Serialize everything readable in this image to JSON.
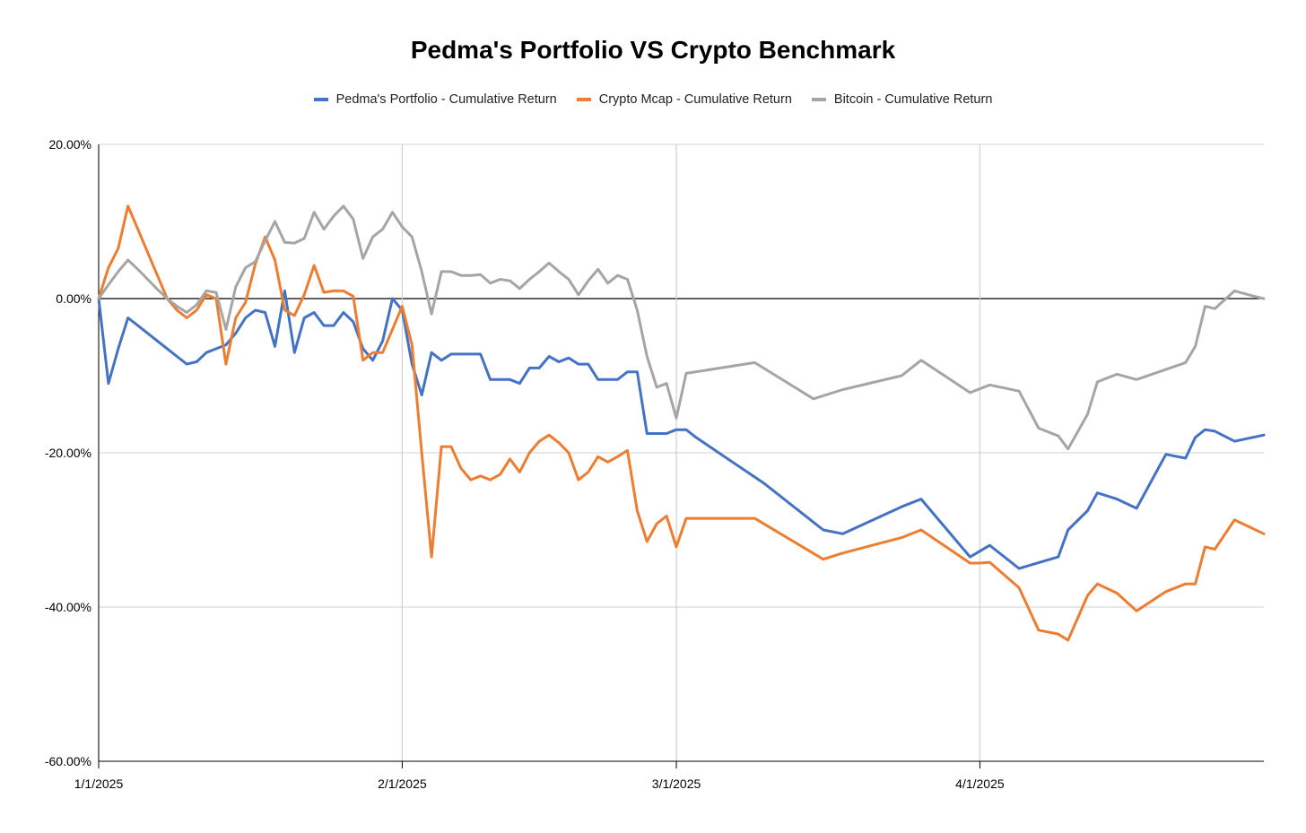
{
  "chart_data": {
    "type": "line",
    "title": "Pedma's Portfolio VS Crypto Benchmark",
    "xlabel": "",
    "ylabel": "",
    "ylim": [
      -60,
      20
    ],
    "xlim": [
      "2025-01-01",
      "2025-04-30"
    ],
    "y_ticks": [
      "20.00%",
      "0.00%",
      "-20.00%",
      "-40.00%",
      "-60.00%"
    ],
    "x_ticks": [
      {
        "date": "2025-01-01",
        "label": "1/1/2025"
      },
      {
        "date": "2025-02-01",
        "label": "2/1/2025"
      },
      {
        "date": "2025-03-01",
        "label": "3/1/2025"
      },
      {
        "date": "2025-04-01",
        "label": "4/1/2025"
      }
    ],
    "grid": true,
    "legend_position": "top",
    "series": [
      {
        "name": "Pedma's Portfolio - Cumulative Return",
        "color": "#4472C4",
        "points": [
          [
            "2025-01-01",
            0
          ],
          [
            "2025-01-02",
            -11
          ],
          [
            "2025-01-03",
            -6.5
          ],
          [
            "2025-01-04",
            -2.5
          ],
          [
            "2025-01-05",
            -3.5
          ],
          [
            "2025-01-06",
            -4.5
          ],
          [
            "2025-01-07",
            -5.5
          ],
          [
            "2025-01-08",
            -6.5
          ],
          [
            "2025-01-09",
            -7.5
          ],
          [
            "2025-01-10",
            -8.5
          ],
          [
            "2025-01-11",
            -8.2
          ],
          [
            "2025-01-12",
            -7
          ],
          [
            "2025-01-13",
            -6.5
          ],
          [
            "2025-01-14",
            -6
          ],
          [
            "2025-01-15",
            -4.5
          ],
          [
            "2025-01-16",
            -2.5
          ],
          [
            "2025-01-17",
            -1.5
          ],
          [
            "2025-01-18",
            -1.8
          ],
          [
            "2025-01-19",
            -6.2
          ],
          [
            "2025-01-20",
            1
          ],
          [
            "2025-01-21",
            -7
          ],
          [
            "2025-01-22",
            -2.5
          ],
          [
            "2025-01-23",
            -1.8
          ],
          [
            "2025-01-24",
            -3.5
          ],
          [
            "2025-01-25",
            -3.5
          ],
          [
            "2025-01-26",
            -1.8
          ],
          [
            "2025-01-27",
            -3
          ],
          [
            "2025-01-28",
            -6.5
          ],
          [
            "2025-01-29",
            -8
          ],
          [
            "2025-01-30",
            -5.5
          ],
          [
            "2025-01-31",
            0
          ],
          [
            "2025-02-01",
            -1.5
          ],
          [
            "2025-02-02",
            -8.5
          ],
          [
            "2025-02-03",
            -12.5
          ],
          [
            "2025-02-04",
            -7
          ],
          [
            "2025-02-05",
            -8
          ],
          [
            "2025-02-06",
            -7.2
          ],
          [
            "2025-02-07",
            -7.2
          ],
          [
            "2025-02-08",
            -7.2
          ],
          [
            "2025-02-09",
            -7.2
          ],
          [
            "2025-02-10",
            -10.5
          ],
          [
            "2025-02-11",
            -10.5
          ],
          [
            "2025-02-12",
            -10.5
          ],
          [
            "2025-02-13",
            -11
          ],
          [
            "2025-02-14",
            -9
          ],
          [
            "2025-02-15",
            -9
          ],
          [
            "2025-02-16",
            -7.5
          ],
          [
            "2025-02-17",
            -8.2
          ],
          [
            "2025-02-18",
            -7.7
          ],
          [
            "2025-02-19",
            -8.5
          ],
          [
            "2025-02-20",
            -8.5
          ],
          [
            "2025-02-21",
            -10.5
          ],
          [
            "2025-02-22",
            -10.5
          ],
          [
            "2025-02-23",
            -10.5
          ],
          [
            "2025-02-24",
            -9.5
          ],
          [
            "2025-02-25",
            -9.5
          ],
          [
            "2025-02-26",
            -17.5
          ],
          [
            "2025-02-27",
            -17.5
          ],
          [
            "2025-02-28",
            -17.5
          ],
          [
            "2025-03-01",
            -17
          ],
          [
            "2025-03-02",
            -17
          ],
          [
            "2025-03-03",
            -18
          ],
          [
            "2025-03-10",
            -24
          ],
          [
            "2025-03-16",
            -30
          ],
          [
            "2025-03-18",
            -30.5
          ],
          [
            "2025-03-24",
            -27
          ],
          [
            "2025-03-26",
            -26
          ],
          [
            "2025-03-31",
            -33.5
          ],
          [
            "2025-04-02",
            -32
          ],
          [
            "2025-04-05",
            -35
          ],
          [
            "2025-04-09",
            -33.5
          ],
          [
            "2025-04-10",
            -30
          ],
          [
            "2025-04-12",
            -27.5
          ],
          [
            "2025-04-13",
            -25.2
          ],
          [
            "2025-04-15",
            -26
          ],
          [
            "2025-04-17",
            -27.2
          ],
          [
            "2025-04-20",
            -20.2
          ],
          [
            "2025-04-22",
            -20.7
          ],
          [
            "2025-04-23",
            -18
          ],
          [
            "2025-04-24",
            -17
          ],
          [
            "2025-04-25",
            -17.2
          ],
          [
            "2025-04-27",
            -18.5
          ],
          [
            "2025-04-30",
            -17.7
          ]
        ]
      },
      {
        "name": "Crypto Mcap - Cumulative Return",
        "color": "#ED7D31",
        "points": [
          [
            "2025-01-01",
            0
          ],
          [
            "2025-01-02",
            4
          ],
          [
            "2025-01-03",
            6.5
          ],
          [
            "2025-01-04",
            12
          ],
          [
            "2025-01-05",
            9
          ],
          [
            "2025-01-06",
            6
          ],
          [
            "2025-01-07",
            3
          ],
          [
            "2025-01-08",
            0
          ],
          [
            "2025-01-09",
            -1.5
          ],
          [
            "2025-01-10",
            -2.5
          ],
          [
            "2025-01-11",
            -1.5
          ],
          [
            "2025-01-12",
            0.5
          ],
          [
            "2025-01-13",
            0
          ],
          [
            "2025-01-14",
            -8.5
          ],
          [
            "2025-01-15",
            -2.5
          ],
          [
            "2025-01-16",
            -0.5
          ],
          [
            "2025-01-17",
            4.5
          ],
          [
            "2025-01-18",
            8
          ],
          [
            "2025-01-19",
            5
          ],
          [
            "2025-01-20",
            -1.5
          ],
          [
            "2025-01-21",
            -2.2
          ],
          [
            "2025-01-22",
            0.5
          ],
          [
            "2025-01-23",
            4.3
          ],
          [
            "2025-01-24",
            0.8
          ],
          [
            "2025-01-25",
            1
          ],
          [
            "2025-01-26",
            1
          ],
          [
            "2025-01-27",
            0.3
          ],
          [
            "2025-01-28",
            -8
          ],
          [
            "2025-01-29",
            -7
          ],
          [
            "2025-01-30",
            -7
          ],
          [
            "2025-01-31",
            -4
          ],
          [
            "2025-02-01",
            -1
          ],
          [
            "2025-02-02",
            -6
          ],
          [
            "2025-02-03",
            -20
          ],
          [
            "2025-02-04",
            -33.5
          ],
          [
            "2025-02-05",
            -19.2
          ],
          [
            "2025-02-06",
            -19.2
          ],
          [
            "2025-02-07",
            -22
          ],
          [
            "2025-02-08",
            -23.5
          ],
          [
            "2025-02-09",
            -23
          ],
          [
            "2025-02-10",
            -23.5
          ],
          [
            "2025-02-11",
            -22.8
          ],
          [
            "2025-02-12",
            -20.8
          ],
          [
            "2025-02-13",
            -22.5
          ],
          [
            "2025-02-14",
            -20
          ],
          [
            "2025-02-15",
            -18.5
          ],
          [
            "2025-02-16",
            -17.7
          ],
          [
            "2025-02-17",
            -18.7
          ],
          [
            "2025-02-18",
            -20
          ],
          [
            "2025-02-19",
            -23.5
          ],
          [
            "2025-02-20",
            -22.5
          ],
          [
            "2025-02-21",
            -20.5
          ],
          [
            "2025-02-22",
            -21.2
          ],
          [
            "2025-02-23",
            -20.5
          ],
          [
            "2025-02-24",
            -19.7
          ],
          [
            "2025-02-25",
            -27.5
          ],
          [
            "2025-02-26",
            -31.5
          ],
          [
            "2025-02-27",
            -29.2
          ],
          [
            "2025-02-28",
            -28.2
          ],
          [
            "2025-03-01",
            -32.2
          ],
          [
            "2025-03-02",
            -28.5
          ],
          [
            "2025-03-09",
            -28.5
          ],
          [
            "2025-03-16",
            -33.8
          ],
          [
            "2025-03-18",
            -33
          ],
          [
            "2025-03-24",
            -31
          ],
          [
            "2025-03-26",
            -30
          ],
          [
            "2025-03-31",
            -34.3
          ],
          [
            "2025-04-01",
            -34.3
          ],
          [
            "2025-04-02",
            -34.2
          ],
          [
            "2025-04-05",
            -37.5
          ],
          [
            "2025-04-07",
            -43
          ],
          [
            "2025-04-09",
            -43.5
          ],
          [
            "2025-04-10",
            -44.3
          ],
          [
            "2025-04-12",
            -38.5
          ],
          [
            "2025-04-13",
            -37
          ],
          [
            "2025-04-15",
            -38.2
          ],
          [
            "2025-04-17",
            -40.5
          ],
          [
            "2025-04-20",
            -38
          ],
          [
            "2025-04-22",
            -37
          ],
          [
            "2025-04-23",
            -37
          ],
          [
            "2025-04-24",
            -32.2
          ],
          [
            "2025-04-25",
            -32.5
          ],
          [
            "2025-04-27",
            -28.7
          ],
          [
            "2025-04-30",
            -30.5
          ]
        ]
      },
      {
        "name": "Bitcoin - Cumulative Return",
        "color": "#A5A5A5",
        "points": [
          [
            "2025-01-01",
            0
          ],
          [
            "2025-01-02",
            1.8
          ],
          [
            "2025-01-03",
            3.5
          ],
          [
            "2025-01-04",
            5
          ],
          [
            "2025-01-05",
            3.8
          ],
          [
            "2025-01-06",
            2.5
          ],
          [
            "2025-01-07",
            1.2
          ],
          [
            "2025-01-08",
            0
          ],
          [
            "2025-01-09",
            -1
          ],
          [
            "2025-01-10",
            -1.8
          ],
          [
            "2025-01-11",
            -0.8
          ],
          [
            "2025-01-12",
            1
          ],
          [
            "2025-01-13",
            0.8
          ],
          [
            "2025-01-14",
            -4
          ],
          [
            "2025-01-15",
            1.5
          ],
          [
            "2025-01-16",
            4
          ],
          [
            "2025-01-17",
            4.8
          ],
          [
            "2025-01-18",
            7.5
          ],
          [
            "2025-01-19",
            10
          ],
          [
            "2025-01-20",
            7.3
          ],
          [
            "2025-01-21",
            7.2
          ],
          [
            "2025-01-22",
            7.8
          ],
          [
            "2025-01-23",
            11.2
          ],
          [
            "2025-01-24",
            9
          ],
          [
            "2025-01-25",
            10.7
          ],
          [
            "2025-01-26",
            12
          ],
          [
            "2025-01-27",
            10.3
          ],
          [
            "2025-01-28",
            5.2
          ],
          [
            "2025-01-29",
            8
          ],
          [
            "2025-01-30",
            9
          ],
          [
            "2025-01-31",
            11.2
          ],
          [
            "2025-02-01",
            9.3
          ],
          [
            "2025-02-02",
            8
          ],
          [
            "2025-02-03",
            3.5
          ],
          [
            "2025-02-04",
            -2
          ],
          [
            "2025-02-05",
            3.5
          ],
          [
            "2025-02-06",
            3.5
          ],
          [
            "2025-02-07",
            3
          ],
          [
            "2025-02-08",
            3
          ],
          [
            "2025-02-09",
            3.1
          ],
          [
            "2025-02-10",
            2
          ],
          [
            "2025-02-11",
            2.5
          ],
          [
            "2025-02-12",
            2.3
          ],
          [
            "2025-02-13",
            1.3
          ],
          [
            "2025-02-14",
            2.5
          ],
          [
            "2025-02-15",
            3.5
          ],
          [
            "2025-02-16",
            4.6
          ],
          [
            "2025-02-17",
            3.5
          ],
          [
            "2025-02-18",
            2.5
          ],
          [
            "2025-02-19",
            0.5
          ],
          [
            "2025-02-20",
            2.3
          ],
          [
            "2025-02-21",
            3.8
          ],
          [
            "2025-02-22",
            2
          ],
          [
            "2025-02-23",
            3
          ],
          [
            "2025-02-24",
            2.5
          ],
          [
            "2025-02-25",
            -1.5
          ],
          [
            "2025-02-26",
            -7.5
          ],
          [
            "2025-02-27",
            -11.5
          ],
          [
            "2025-02-28",
            -11
          ],
          [
            "2025-03-01",
            -15.5
          ],
          [
            "2025-03-02",
            -9.7
          ],
          [
            "2025-03-09",
            -8.3
          ],
          [
            "2025-03-15",
            -13
          ],
          [
            "2025-03-18",
            -11.8
          ],
          [
            "2025-03-24",
            -10
          ],
          [
            "2025-03-26",
            -8
          ],
          [
            "2025-03-31",
            -12.2
          ],
          [
            "2025-04-02",
            -11.2
          ],
          [
            "2025-04-05",
            -12
          ],
          [
            "2025-04-07",
            -16.8
          ],
          [
            "2025-04-09",
            -17.8
          ],
          [
            "2025-04-10",
            -19.5
          ],
          [
            "2025-04-12",
            -15
          ],
          [
            "2025-04-13",
            -10.8
          ],
          [
            "2025-04-15",
            -9.8
          ],
          [
            "2025-04-17",
            -10.5
          ],
          [
            "2025-04-22",
            -8.3
          ],
          [
            "2025-04-23",
            -6.2
          ],
          [
            "2025-04-24",
            -1
          ],
          [
            "2025-04-25",
            -1.3
          ],
          [
            "2025-04-27",
            1
          ],
          [
            "2025-04-29",
            0.3
          ],
          [
            "2025-04-30",
            0
          ]
        ]
      }
    ]
  }
}
